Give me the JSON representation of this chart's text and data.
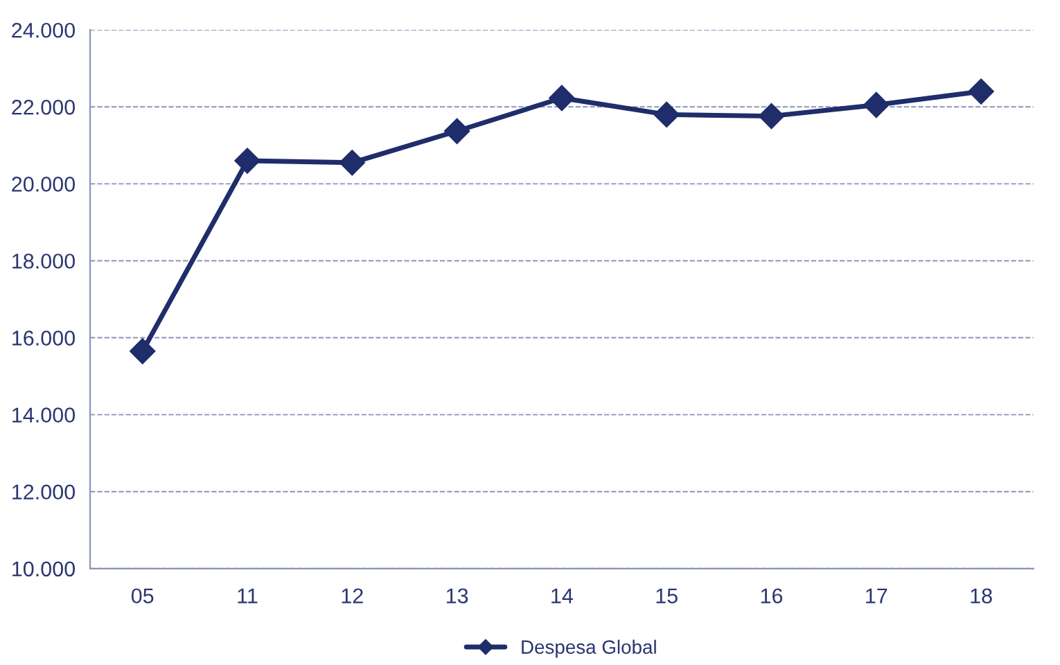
{
  "chart_data": {
    "type": "line",
    "categories": [
      "05",
      "11",
      "12",
      "13",
      "14",
      "15",
      "16",
      "17",
      "18"
    ],
    "series": [
      {
        "name": "Despesa Global",
        "color": "#1f2d6b",
        "values": [
          15650,
          20600,
          20550,
          21370,
          22230,
          21800,
          21760,
          22050,
          22400
        ]
      }
    ],
    "ylim": [
      10000,
      24000
    ],
    "yticks": [
      {
        "value": 10000,
        "label": "10.000"
      },
      {
        "value": 12000,
        "label": "12.000"
      },
      {
        "value": 14000,
        "label": "14.000"
      },
      {
        "value": 16000,
        "label": "16.000"
      },
      {
        "value": 18000,
        "label": "18.000"
      },
      {
        "value": 20000,
        "label": "20.000"
      },
      {
        "value": 22000,
        "label": "22.000"
      },
      {
        "value": 24000,
        "label": "24.000"
      }
    ],
    "grid": "y",
    "legend": "bottom",
    "marker": "diamond",
    "line_style": "solid"
  }
}
